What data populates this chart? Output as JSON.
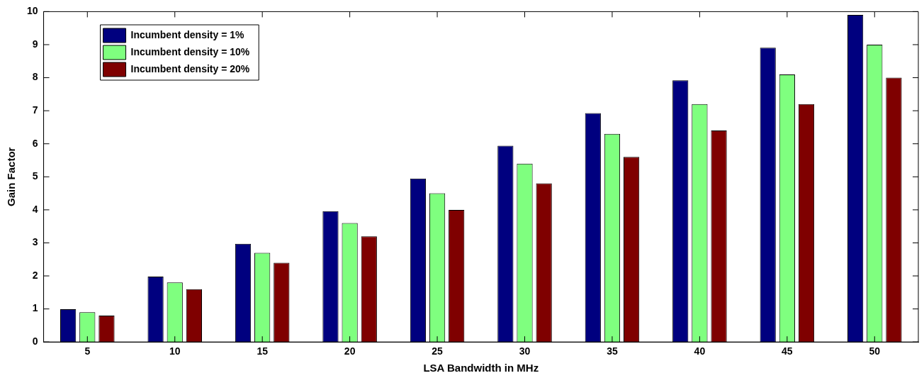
{
  "chart_data": {
    "type": "bar",
    "xlabel": "LSA Bandwidth in MHz",
    "ylabel": "Gain Factor",
    "categories": [
      "5",
      "10",
      "15",
      "20",
      "25",
      "30",
      "35",
      "40",
      "45",
      "50"
    ],
    "series": [
      {
        "name": "Incumbent density = 1%",
        "color": "#00007f",
        "values": [
          0.99,
          1.98,
          2.97,
          3.96,
          4.95,
          5.94,
          6.93,
          7.92,
          8.91,
          9.9
        ]
      },
      {
        "name": "Incumbent density = 10%",
        "color": "#7fff7f",
        "values": [
          0.9,
          1.8,
          2.7,
          3.6,
          4.5,
          5.4,
          6.3,
          7.2,
          8.1,
          9.0
        ]
      },
      {
        "name": "Incumbent density = 20%",
        "color": "#7f0000",
        "values": [
          0.8,
          1.6,
          2.4,
          3.2,
          4.0,
          4.8,
          5.6,
          6.4,
          7.2,
          8.0
        ]
      }
    ],
    "ylim": [
      0,
      10
    ],
    "yticks": [
      0,
      1,
      2,
      3,
      4,
      5,
      6,
      7,
      8,
      9,
      10
    ],
    "grid": false,
    "legend": "top left"
  }
}
